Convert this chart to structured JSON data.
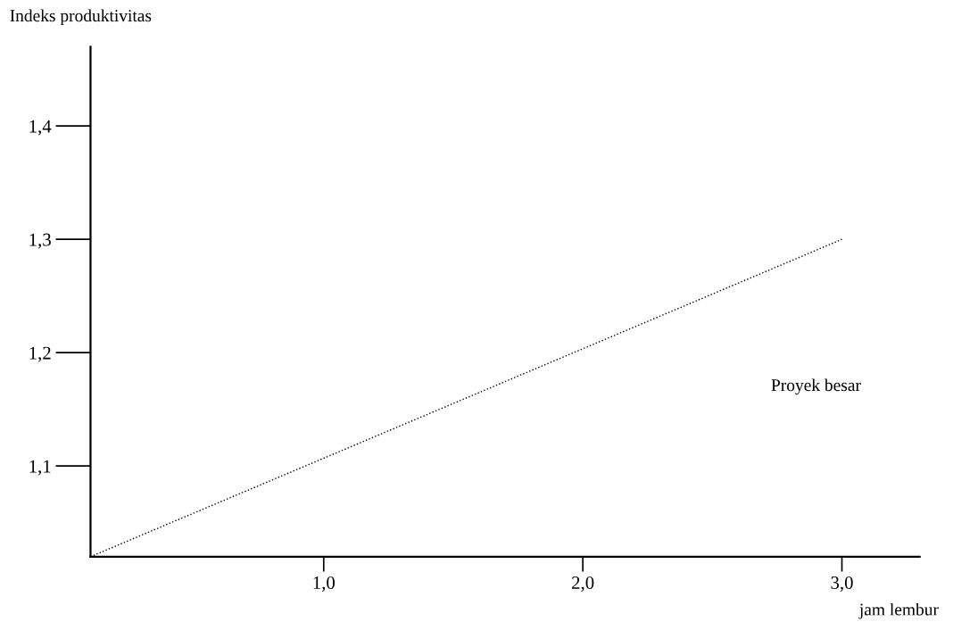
{
  "chart_data": {
    "type": "line",
    "xlabel": "jam lembur",
    "ylabel": "Indeks produktivitas",
    "x": [
      0.1,
      3.0
    ],
    "series": [
      {
        "name": "Proyek besar",
        "color": "#000000",
        "values": [
          1.02,
          1.3
        ],
        "line_style": "dotted"
      }
    ],
    "xlim": [
      0.1,
      3.3
    ],
    "ylim": [
      1.02,
      1.47
    ],
    "xticks": [
      {
        "value": 1,
        "label": "1,0"
      },
      {
        "value": 2,
        "label": "2,0"
      },
      {
        "value": 3,
        "label": "3,0"
      }
    ],
    "yticks": [
      {
        "value": 1.1,
        "label": "1,1"
      },
      {
        "value": 1.2,
        "label": "1,2"
      },
      {
        "value": 1.3,
        "label": "1,3"
      },
      {
        "value": 1.4,
        "label": "1,4"
      }
    ],
    "grid": false,
    "legend": false,
    "marker": "none"
  }
}
